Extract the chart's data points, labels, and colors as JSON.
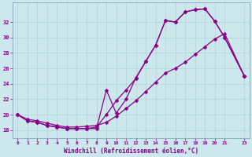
{
  "xlabel": "Windchill (Refroidissement éolien,°C)",
  "bg_color": "#cce8ec",
  "line_color": "#880088",
  "xlim": [
    -0.5,
    23.5
  ],
  "ylim": [
    17.0,
    34.5
  ],
  "xticks": [
    0,
    1,
    2,
    3,
    4,
    5,
    6,
    7,
    8,
    9,
    10,
    11,
    12,
    13,
    14,
    15,
    16,
    17,
    18,
    19,
    20,
    21,
    23
  ],
  "yticks": [
    18,
    20,
    22,
    24,
    26,
    28,
    30,
    32
  ],
  "line1_x": [
    0,
    1,
    2,
    3,
    4,
    5,
    6,
    7,
    8,
    9,
    10,
    11,
    12,
    13,
    14,
    15,
    16,
    17,
    18,
    19,
    20,
    21,
    23
  ],
  "line1_y": [
    20.0,
    19.2,
    19.0,
    18.6,
    18.4,
    18.2,
    18.2,
    18.2,
    18.2,
    23.2,
    20.2,
    22.0,
    24.8,
    26.9,
    29.0,
    32.2,
    32.0,
    33.3,
    33.6,
    33.7,
    32.1,
    30.0,
    25.0
  ],
  "line2_x": [
    0,
    1,
    2,
    3,
    4,
    5,
    6,
    7,
    8,
    9,
    10,
    11,
    12,
    13,
    14,
    15,
    16,
    17,
    18,
    19,
    20,
    21,
    23
  ],
  "line2_y": [
    20.0,
    19.2,
    19.0,
    18.6,
    18.4,
    18.2,
    18.2,
    18.2,
    18.4,
    20.0,
    21.8,
    23.2,
    24.7,
    26.9,
    29.0,
    32.2,
    32.0,
    33.3,
    33.6,
    33.7,
    32.1,
    30.0,
    25.0
  ],
  "line3_x": [
    0,
    1,
    2,
    3,
    4,
    5,
    6,
    7,
    8,
    9,
    10,
    11,
    12,
    13,
    14,
    15,
    16,
    17,
    18,
    19,
    20,
    21,
    23
  ],
  "line3_y": [
    20.0,
    19.4,
    19.2,
    18.9,
    18.6,
    18.4,
    18.4,
    18.5,
    18.6,
    19.0,
    19.8,
    20.8,
    21.8,
    23.0,
    24.2,
    25.4,
    26.0,
    26.8,
    27.8,
    28.8,
    29.8,
    30.5,
    25.0
  ]
}
